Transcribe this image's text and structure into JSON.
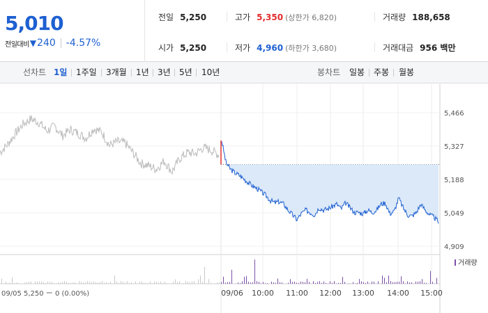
{
  "summary": {
    "price": "5,010",
    "change_label": "전일대비",
    "change_arrow": "▼",
    "change_value": "240",
    "change_percent": "-4.57%",
    "prev_close": {
      "label": "전일",
      "value": "5,250"
    },
    "open": {
      "label": "시가",
      "value": "5,250"
    },
    "high": {
      "label": "고가",
      "value": "5,350",
      "limit": "(상한가 6,820)"
    },
    "low": {
      "label": "저가",
      "value": "4,960",
      "limit": "(하한가 3,680)"
    },
    "volume": {
      "label": "거래량",
      "value": "188,658"
    },
    "amount": {
      "label": "거래대금",
      "value": "956 백만"
    }
  },
  "toolbar": {
    "line_label": "선차트",
    "line_periods": [
      "1일",
      "1주일",
      "3개월",
      "1년",
      "3년",
      "5년",
      "10년"
    ],
    "active_period": "1일",
    "candle_label": "봉차트",
    "candle_periods": [
      "일봉",
      "주봉",
      "월봉"
    ]
  },
  "chart_data": {
    "type": "line",
    "title": "",
    "price_ticks": [
      "5,466",
      "5,327",
      "5,188",
      "5,049",
      "4,909"
    ],
    "ylim": [
      4909,
      5466
    ],
    "time_ticks": [
      "09/06",
      "10:00",
      "11:00",
      "12:00",
      "13:00",
      "14:00",
      "15:00"
    ],
    "prev_day": {
      "date": "09/05",
      "summary": "09/05  5,250 ー 0 (0.00%)"
    },
    "reference_price": 5250,
    "volume_legend": "거래량",
    "series": [
      {
        "values": [
          5300,
          5335,
          5380,
          5420,
          5440,
          5425,
          5390,
          5410,
          5370,
          5395,
          5380,
          5360,
          5400,
          5385,
          5330,
          5345,
          5340,
          5300,
          5255,
          5245,
          5230,
          5265,
          5220,
          5275,
          5300,
          5295,
          5320,
          5310,
          5290
        ]
      },
      {
        "values": [
          5350,
          5255,
          5230,
          5215,
          5205,
          5190,
          5175,
          5160,
          5150,
          5135,
          5120,
          5100,
          5090,
          5095,
          5085,
          5060,
          5040,
          5020,
          5045,
          5060,
          5050,
          5040,
          5070,
          5060,
          5065,
          5075,
          5085,
          5065,
          5090,
          5070,
          5050,
          5050,
          5045,
          5060,
          5050,
          5060,
          5085,
          5090,
          5045,
          5055,
          5110,
          5070,
          5040,
          5035,
          5050,
          5085,
          5060,
          5040,
          5030,
          5010
        ]
      }
    ],
    "colors": {
      "prev_line": "#bbbbbb",
      "today_line": "#1e60d1",
      "fill": "#dce9f9",
      "volume_bar": "#7b4fa8",
      "spike": "#e32d2d"
    }
  }
}
